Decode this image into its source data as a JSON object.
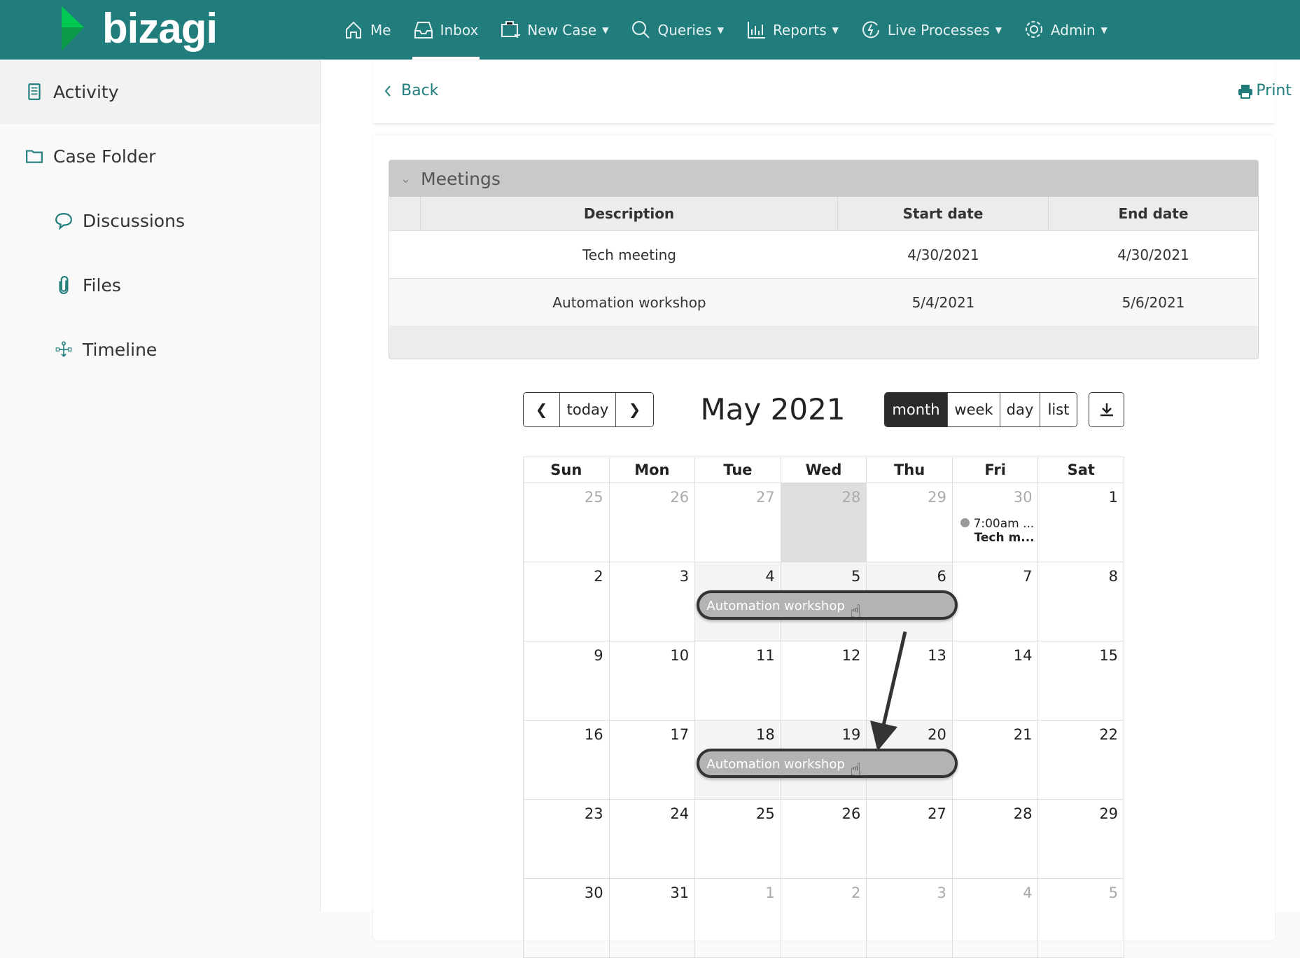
{
  "brand": {
    "name": "bizagi",
    "colors": {
      "header": "#217c7c",
      "accent": "#217c7c",
      "event": "#b3b3b3"
    }
  },
  "nav": [
    {
      "label": "Me",
      "icon": "home-icon"
    },
    {
      "label": "Inbox",
      "icon": "inbox-icon",
      "active": true
    },
    {
      "label": "New Case",
      "icon": "new-case-icon",
      "dropdown": true
    },
    {
      "label": "Queries",
      "icon": "search-icon",
      "dropdown": true
    },
    {
      "label": "Reports",
      "icon": "reports-icon",
      "dropdown": true
    },
    {
      "label": "Live Processes",
      "icon": "live-processes-icon",
      "dropdown": true
    },
    {
      "label": "Admin",
      "icon": "gear-icon",
      "dropdown": true
    }
  ],
  "sidebar": {
    "items": [
      {
        "label": "Activity",
        "icon": "activity-icon"
      },
      {
        "label": "Case Folder",
        "icon": "folder-icon"
      },
      {
        "label": "Discussions",
        "icon": "chat-bubble-icon"
      },
      {
        "label": "Files",
        "icon": "paperclip-icon"
      },
      {
        "label": "Timeline",
        "icon": "timeline-icon"
      }
    ]
  },
  "page": {
    "back": "Back",
    "print": "Print"
  },
  "meetings": {
    "title": "Meetings",
    "columns": [
      "Description",
      "Start date",
      "End date"
    ],
    "rows": [
      [
        "Tech meeting",
        "4/30/2021",
        "4/30/2021"
      ],
      [
        "Automation workshop",
        "5/4/2021",
        "5/6/2021"
      ]
    ]
  },
  "calendar": {
    "title": "May 2021",
    "today_label": "today",
    "views": [
      "month",
      "week",
      "day",
      "list"
    ],
    "active_view": "month",
    "weekdays": [
      "Sun",
      "Mon",
      "Tue",
      "Wed",
      "Thu",
      "Fri",
      "Sat"
    ],
    "weeks": [
      [
        25,
        26,
        27,
        28,
        29,
        30,
        1
      ],
      [
        2,
        3,
        4,
        5,
        6,
        7,
        8
      ],
      [
        9,
        10,
        11,
        12,
        13,
        14,
        15
      ],
      [
        16,
        17,
        18,
        19,
        20,
        21,
        22
      ],
      [
        23,
        24,
        25,
        26,
        27,
        28,
        29
      ],
      [
        30,
        31,
        1,
        2,
        3,
        4,
        5
      ]
    ],
    "events": [
      {
        "time": "7:00am ...",
        "title": "Tech m...",
        "week": 0,
        "start_col": 5,
        "end_col": 5,
        "style": "dot"
      },
      {
        "title": "Automation workshop",
        "week": 1,
        "start_col": 2,
        "end_col": 4,
        "style": "bar"
      },
      {
        "title": "Automation workshop",
        "week": 3,
        "start_col": 2,
        "end_col": 4,
        "style": "bar"
      }
    ]
  }
}
